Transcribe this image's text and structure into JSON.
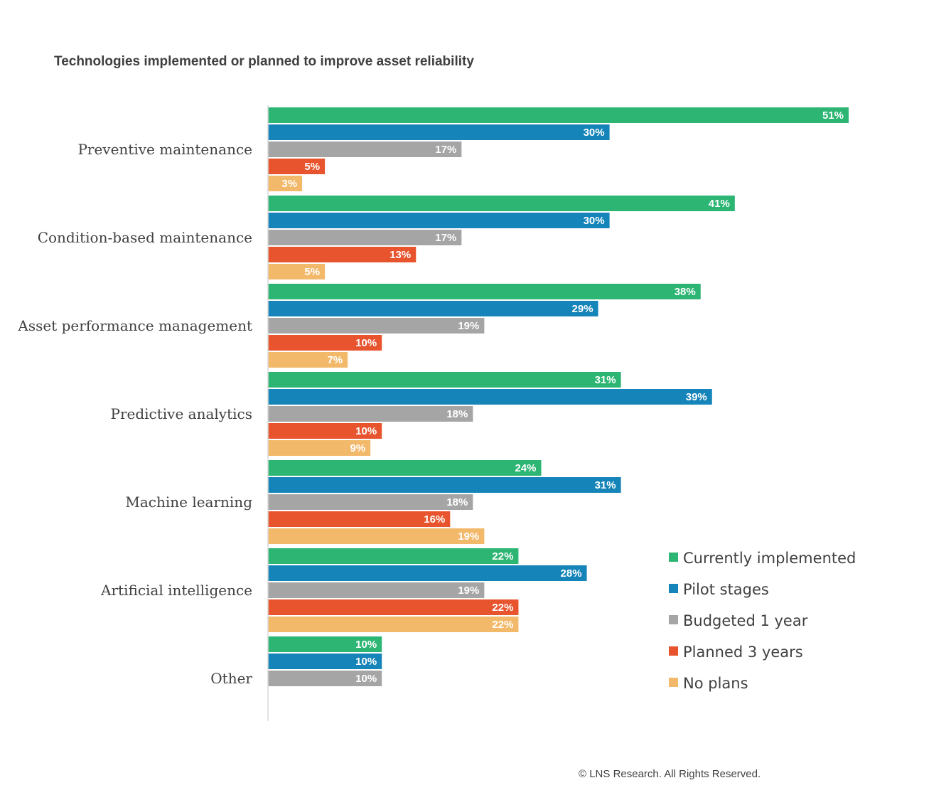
{
  "copyright": "© LNS Research. All Rights Reserved.",
  "chart_data": {
    "type": "bar",
    "orientation": "horizontal",
    "title": "Technologies implemented or planned to improve asset reliability",
    "categories": [
      "Preventive maintenance",
      "Condition-based maintenance",
      "Asset performance management",
      "Predictive analytics",
      "Machine learning",
      "Artificial intelligence",
      "Other"
    ],
    "series": [
      {
        "name": "Currently implemented",
        "color": "#2db574",
        "values": [
          51,
          41,
          38,
          31,
          24,
          22,
          10
        ]
      },
      {
        "name": "Pilot stages",
        "color": "#1584b8",
        "values": [
          30,
          30,
          29,
          39,
          31,
          28,
          10
        ]
      },
      {
        "name": "Budgeted 1 year",
        "color": "#a5a5a5",
        "values": [
          17,
          17,
          19,
          18,
          18,
          19,
          10
        ]
      },
      {
        "name": "Planned 3 years",
        "color": "#e8542d",
        "values": [
          5,
          13,
          10,
          10,
          16,
          22,
          null
        ]
      },
      {
        "name": "No plans",
        "color": "#f3b96b",
        "values": [
          3,
          5,
          7,
          9,
          19,
          22,
          null
        ]
      }
    ],
    "value_suffix": "%",
    "data_labels": true,
    "grid": false,
    "legend_position": "bottom-right"
  }
}
